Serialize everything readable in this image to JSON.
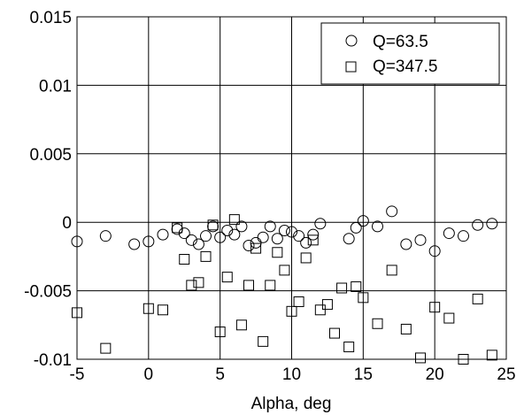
{
  "chart_data": {
    "type": "scatter",
    "title": "",
    "xlabel": "Alpha, deg",
    "ylabel": "",
    "xlim": [
      -5,
      25
    ],
    "ylim": [
      -0.01,
      0.015
    ],
    "x_ticks": [
      -5,
      0,
      5,
      10,
      15,
      20,
      25
    ],
    "x_tick_labels": [
      "-5",
      "0",
      "5",
      "10",
      "15",
      "20",
      "25"
    ],
    "y_ticks": [
      -0.01,
      -0.005,
      0,
      0.005,
      0.01,
      0.015
    ],
    "y_tick_labels": [
      "-0.01",
      "-0.005",
      "0",
      "0.005",
      "0.01",
      "0.015"
    ],
    "grid": true,
    "legend_position": "top-right",
    "series": [
      {
        "name": "Q=63.5",
        "marker": "circle",
        "color": "#000000",
        "points": [
          [
            -5,
            -0.0014
          ],
          [
            -3,
            -0.001
          ],
          [
            -1,
            -0.0016
          ],
          [
            0,
            -0.0014
          ],
          [
            1,
            -0.0009
          ],
          [
            2,
            -0.0005
          ],
          [
            2.5,
            -0.0008
          ],
          [
            3,
            -0.0013
          ],
          [
            3.5,
            -0.0016
          ],
          [
            4,
            -0.001
          ],
          [
            4.5,
            -0.0003
          ],
          [
            5,
            -0.0011
          ],
          [
            5.5,
            -0.0006
          ],
          [
            6,
            -0.0009
          ],
          [
            6.5,
            -0.0003
          ],
          [
            7,
            -0.0017
          ],
          [
            7.5,
            -0.0015
          ],
          [
            8,
            -0.0011
          ],
          [
            8.5,
            -0.0003
          ],
          [
            9,
            -0.0012
          ],
          [
            9.5,
            -0.0006
          ],
          [
            10,
            -0.0007
          ],
          [
            10.5,
            -0.001
          ],
          [
            11,
            -0.0015
          ],
          [
            11.5,
            -0.0009
          ],
          [
            12,
            -0.0001
          ],
          [
            14,
            -0.0012
          ],
          [
            14.5,
            -0.0004
          ],
          [
            15,
            0.0001
          ],
          [
            16,
            -0.0003
          ],
          [
            17,
            0.0008
          ],
          [
            18,
            -0.0016
          ],
          [
            19,
            -0.0013
          ],
          [
            20,
            -0.0021
          ],
          [
            21,
            -0.0008
          ],
          [
            22,
            -0.001
          ],
          [
            23,
            -0.0002
          ],
          [
            24,
            -0.0001
          ]
        ]
      },
      {
        "name": "Q=347.5",
        "marker": "square",
        "color": "#000000",
        "points": [
          [
            -5,
            -0.0066
          ],
          [
            -3,
            -0.0092
          ],
          [
            0,
            -0.0063
          ],
          [
            1,
            -0.0064
          ],
          [
            2,
            -0.0004
          ],
          [
            2.5,
            -0.0027
          ],
          [
            3,
            -0.0046
          ],
          [
            3.5,
            -0.0044
          ],
          [
            4,
            -0.0025
          ],
          [
            4.5,
            -0.0002
          ],
          [
            5,
            -0.008
          ],
          [
            5.5,
            -0.004
          ],
          [
            6,
            0.0002
          ],
          [
            6.5,
            -0.0075
          ],
          [
            7,
            -0.0046
          ],
          [
            7.5,
            -0.0019
          ],
          [
            8,
            -0.0087
          ],
          [
            8.5,
            -0.0046
          ],
          [
            9,
            -0.0022
          ],
          [
            9.5,
            -0.0035
          ],
          [
            10,
            -0.0065
          ],
          [
            10.5,
            -0.0058
          ],
          [
            11,
            -0.0026
          ],
          [
            11.5,
            -0.0013
          ],
          [
            12,
            -0.0064
          ],
          [
            12.5,
            -0.006
          ],
          [
            13,
            -0.0081
          ],
          [
            13.5,
            -0.0048
          ],
          [
            14,
            -0.0091
          ],
          [
            14.5,
            -0.0047
          ],
          [
            15,
            -0.0055
          ],
          [
            16,
            -0.0074
          ],
          [
            17,
            -0.0035
          ],
          [
            18,
            -0.0078
          ],
          [
            19,
            -0.0099
          ],
          [
            20,
            -0.0062
          ],
          [
            21,
            -0.007
          ],
          [
            22,
            -0.01
          ],
          [
            23,
            -0.0056
          ],
          [
            24,
            -0.0097
          ]
        ]
      }
    ]
  }
}
